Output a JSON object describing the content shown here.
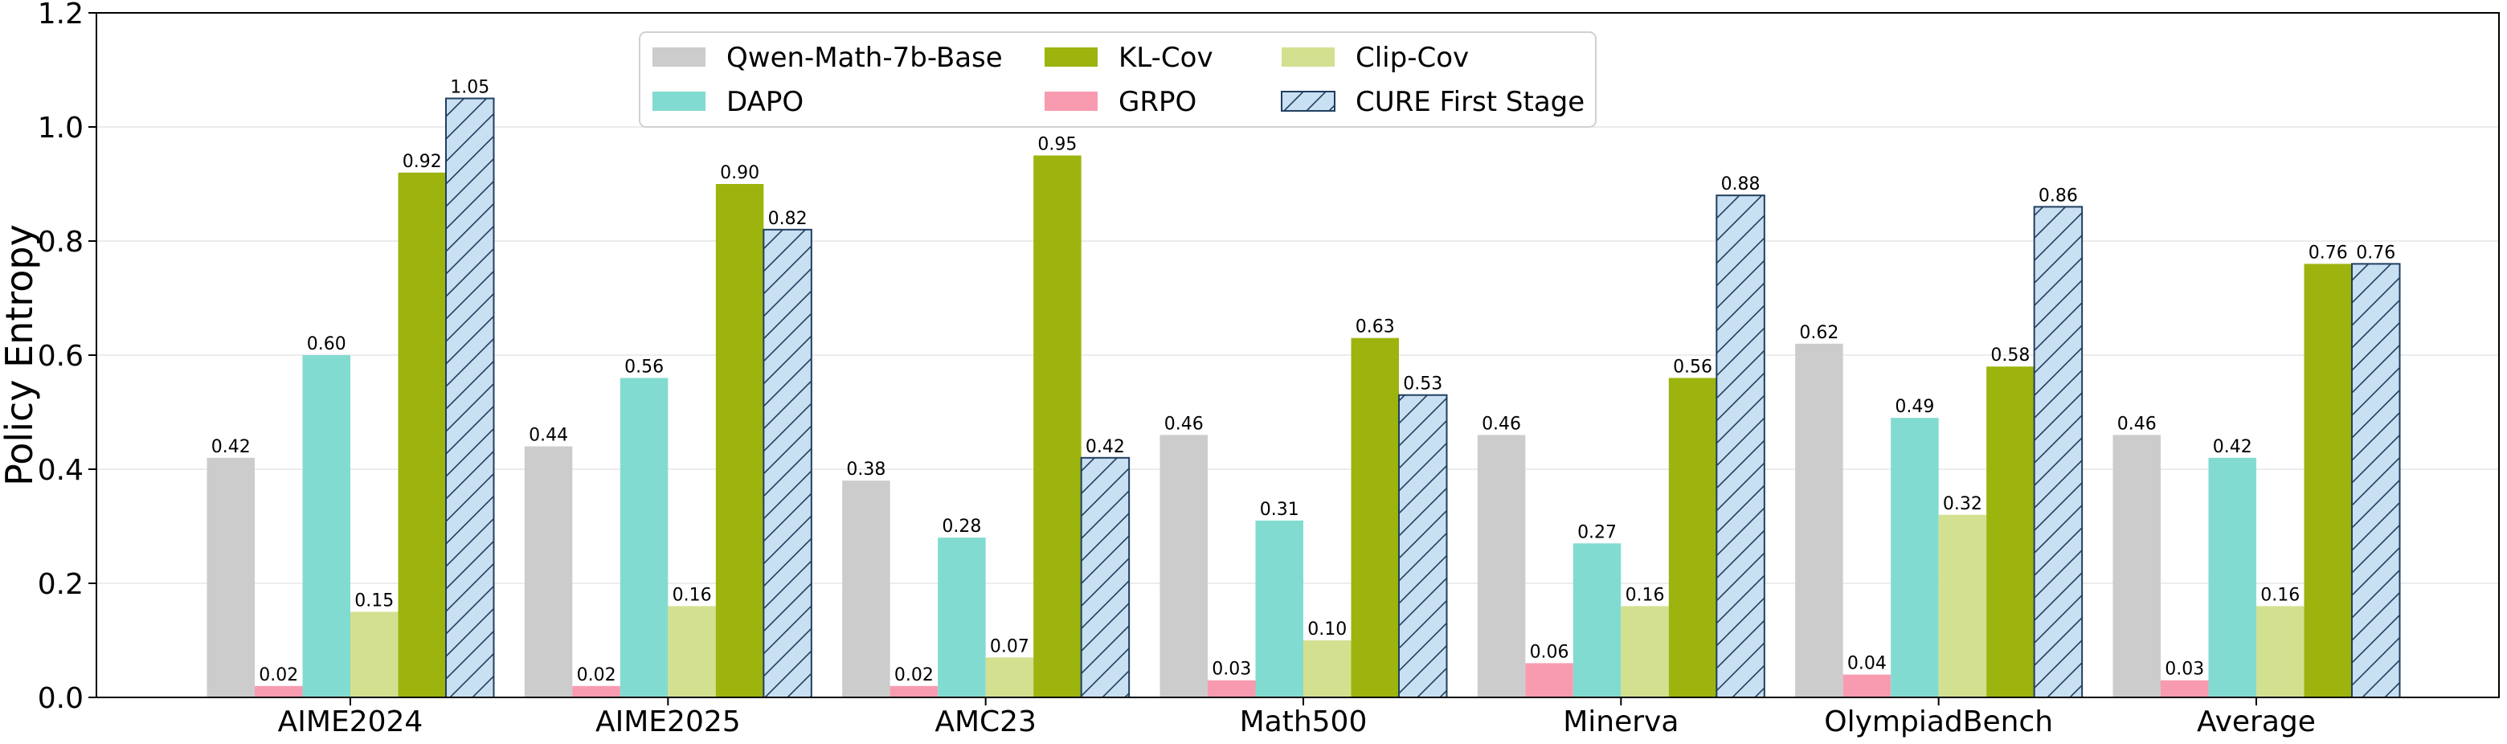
{
  "chart_data": {
    "type": "bar",
    "title": "",
    "xlabel": "",
    "ylabel": "Policy Entropy",
    "ylim": [
      0,
      1.2
    ],
    "yticks": [
      "0.0",
      "0.2",
      "0.4",
      "0.6",
      "0.8",
      "1.0",
      "1.2"
    ],
    "ytick_values": [
      0,
      0.2,
      0.4,
      0.6,
      0.8,
      1.0,
      1.2
    ],
    "grid": "horizontal, light",
    "legend_position": "top-center",
    "categories": [
      "AIME2024",
      "AIME2025",
      "AMC23",
      "Math500",
      "Minerva",
      "OlympiadBench",
      "Average"
    ],
    "series": [
      {
        "name": "Qwen-Math-7b-Base",
        "color": "#cccccc",
        "hatch": false,
        "values": [
          0.42,
          0.44,
          0.38,
          0.46,
          0.46,
          0.62,
          0.46
        ],
        "labels": [
          "0.42",
          "0.44",
          "0.38",
          "0.46",
          "0.46",
          "0.62",
          "0.46"
        ]
      },
      {
        "name": "GRPO",
        "color": "#f89bb0",
        "hatch": false,
        "values": [
          0.02,
          0.02,
          0.02,
          0.03,
          0.06,
          0.04,
          0.03
        ],
        "labels": [
          "0.02",
          "0.02",
          "0.02",
          "0.03",
          "0.06",
          "0.04",
          "0.03"
        ]
      },
      {
        "name": "DAPO",
        "color": "#82dbd0",
        "hatch": false,
        "values": [
          0.6,
          0.56,
          0.28,
          0.31,
          0.27,
          0.49,
          0.42
        ],
        "labels": [
          "0.60",
          "0.56",
          "0.28",
          "0.31",
          "0.27",
          "0.49",
          "0.42"
        ]
      },
      {
        "name": "Clip-Cov",
        "color": "#d3e090",
        "hatch": false,
        "values": [
          0.15,
          0.16,
          0.07,
          0.1,
          0.16,
          0.32,
          0.16
        ],
        "labels": [
          "0.15",
          "0.16",
          "0.07",
          "0.10",
          "0.16",
          "0.32",
          "0.16"
        ]
      },
      {
        "name": "KL-Cov",
        "color": "#9db40f",
        "hatch": false,
        "values": [
          0.92,
          0.9,
          0.95,
          0.63,
          0.56,
          0.58,
          0.76
        ],
        "labels": [
          "0.92",
          "0.90",
          "0.95",
          "0.63",
          "0.56",
          "0.58",
          "0.76"
        ]
      },
      {
        "name": "CURE First Stage",
        "color": "#c9dff2",
        "edge": "#1f3f5f",
        "hatch": true,
        "values": [
          1.05,
          0.82,
          0.42,
          0.53,
          0.88,
          0.86,
          0.76
        ],
        "labels": [
          "1.05",
          "0.82",
          "0.42",
          "0.53",
          "0.88",
          "0.86",
          "0.76"
        ]
      }
    ],
    "legend_order": [
      0,
      2,
      4,
      1,
      3,
      5
    ]
  }
}
